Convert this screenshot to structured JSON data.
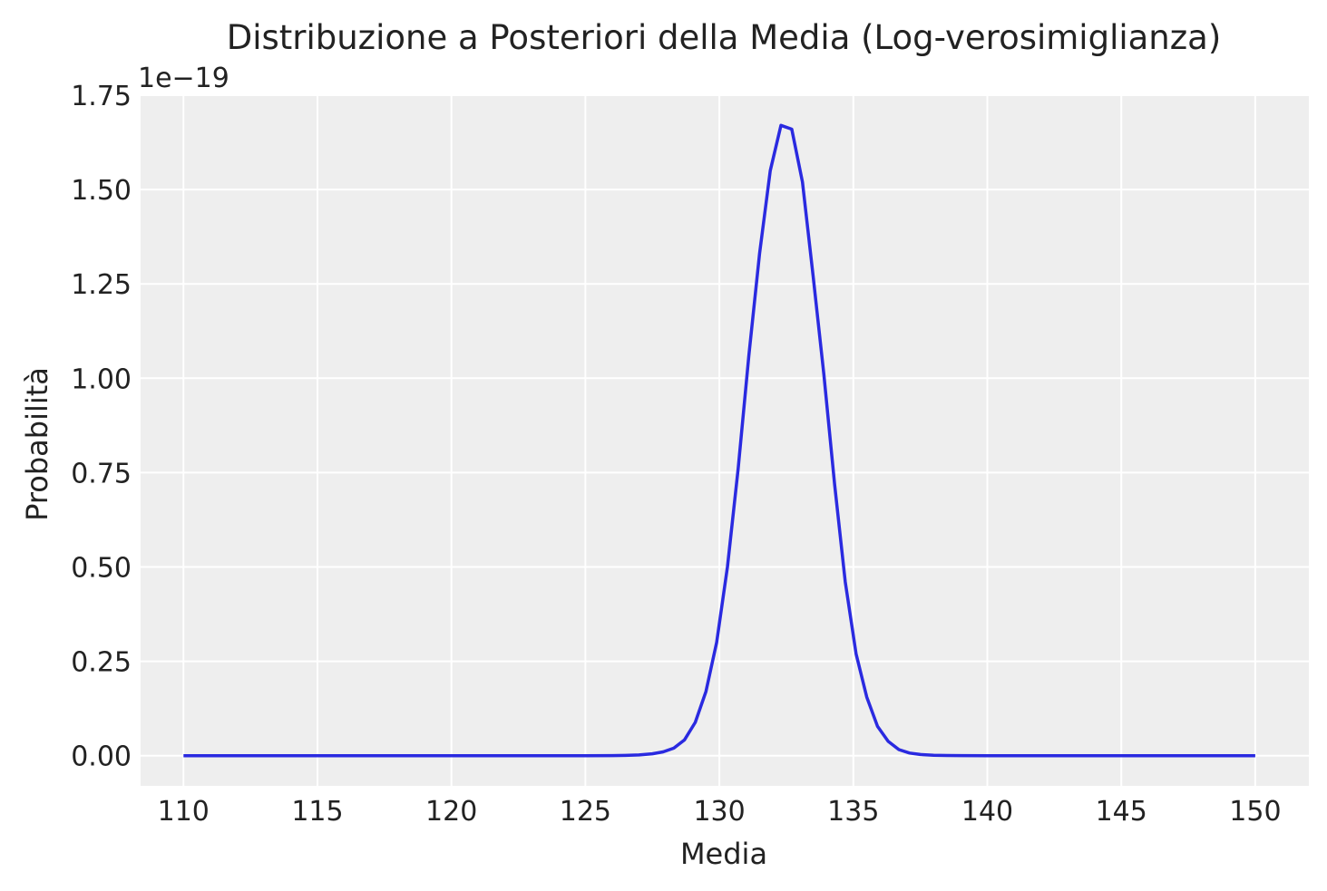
{
  "chart_data": {
    "type": "line",
    "title": "Distribuzione a Posteriori della Media (Log-verosimiglianza)",
    "xlabel": "Media",
    "ylabel": "Probabilità",
    "y_offset_label": "1e−19",
    "xlim": [
      108.4,
      152.0
    ],
    "ylim": [
      -0.08,
      1.75
    ],
    "x_ticks": [
      110,
      115,
      120,
      125,
      130,
      135,
      140,
      145,
      150
    ],
    "x_tick_labels": [
      "110",
      "115",
      "120",
      "125",
      "130",
      "135",
      "140",
      "145",
      "150"
    ],
    "y_ticks": [
      0.0,
      0.25,
      0.5,
      0.75,
      1.0,
      1.25,
      1.5,
      1.75
    ],
    "y_tick_labels": [
      "0.00",
      "0.25",
      "0.50",
      "0.75",
      "1.00",
      "1.25",
      "1.50",
      "1.75"
    ],
    "grid": true,
    "colors": {
      "line": "#2a2ae0",
      "plot_background": "#eeeeee",
      "grid": "#ffffff"
    },
    "series": [
      {
        "x": [
          110,
          112,
          114,
          116,
          118,
          120,
          122,
          124,
          125,
          126,
          126.5,
          127,
          127.5,
          127.9,
          128.3,
          128.7,
          129.1,
          129.5,
          129.9,
          130.3,
          130.7,
          131.1,
          131.5,
          131.9,
          132.3,
          132.7,
          133.1,
          133.5,
          133.9,
          134.3,
          134.7,
          135.1,
          135.5,
          135.9,
          136.3,
          136.7,
          137.1,
          137.5,
          138,
          138.5,
          139,
          140,
          142,
          144,
          146,
          148,
          150
        ],
        "values": [
          0,
          0,
          0,
          0,
          0,
          0,
          0,
          0,
          0,
          0.0003,
          0.0008,
          0.002,
          0.005,
          0.01,
          0.02,
          0.042,
          0.088,
          0.17,
          0.3,
          0.5,
          0.76,
          1.06,
          1.33,
          1.55,
          1.67,
          1.66,
          1.52,
          1.27,
          1.01,
          0.72,
          0.46,
          0.27,
          0.155,
          0.078,
          0.038,
          0.016,
          0.007,
          0.003,
          0.001,
          0.0004,
          0.0001,
          0,
          0,
          0,
          0,
          0,
          0
        ]
      }
    ]
  }
}
